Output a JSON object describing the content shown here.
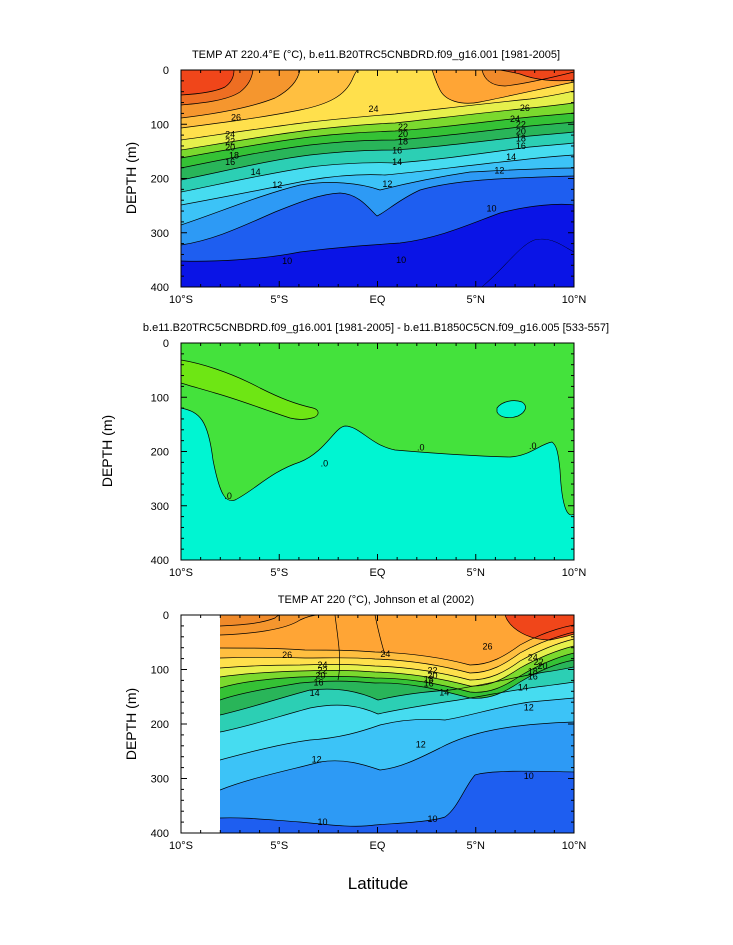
{
  "chart_data": [
    {
      "type": "contour",
      "title": "TEMP AT 220.4°E (°C), b.e11.B20TRC5CNBDRD.f09_g16.001 [1981-2005]",
      "xlabel": "",
      "ylabel": "DEPTH (m)",
      "xlim": [
        -10,
        10
      ],
      "ylim": [
        0,
        400
      ],
      "y_reversed": true,
      "xticks": [
        -10,
        -5,
        0,
        5,
        10
      ],
      "xtick_labels": [
        "10°S",
        "5°S",
        "EQ",
        "5°N",
        "10°N"
      ],
      "yticks": [
        0,
        100,
        200,
        300,
        400
      ],
      "ytick_labels": [
        "0",
        "100",
        "200",
        "300",
        "400"
      ],
      "fill_colors": [
        "#0a14e6",
        "#1e5ef0",
        "#2d9af5",
        "#3cc3f7",
        "#46dcf0",
        "#2ccfb4",
        "#29b559",
        "#35c235",
        "#7bd92e",
        "#e6f04c",
        "#ffe04c",
        "#ffbf40",
        "#ffa535",
        "#f5962e",
        "#f08a2a",
        "#ee6e22",
        "#f0461a"
      ],
      "contour_labels": [
        {
          "text": "26",
          "x": -7.2,
          "y": 88
        },
        {
          "text": "24",
          "x": -7.5,
          "y": 119
        },
        {
          "text": "22",
          "x": -7.5,
          "y": 132
        },
        {
          "text": "20",
          "x": -7.5,
          "y": 143
        },
        {
          "text": "18",
          "x": -7.3,
          "y": 158
        },
        {
          "text": "16",
          "x": -7.5,
          "y": 170
        },
        {
          "text": "14",
          "x": -6.2,
          "y": 188
        },
        {
          "text": "12",
          "x": -5.1,
          "y": 212
        },
        {
          "text": "10",
          "x": -4.6,
          "y": 352
        },
        {
          "text": "24",
          "x": -0.2,
          "y": 72
        },
        {
          "text": "22",
          "x": 1.3,
          "y": 105
        },
        {
          "text": "20",
          "x": 1.3,
          "y": 118
        },
        {
          "text": "18",
          "x": 1.3,
          "y": 132
        },
        {
          "text": "16",
          "x": 1.0,
          "y": 148
        },
        {
          "text": "14",
          "x": 1.0,
          "y": 170
        },
        {
          "text": "12",
          "x": 0.5,
          "y": 210
        },
        {
          "text": "10",
          "x": 1.2,
          "y": 350
        },
        {
          "text": "26",
          "x": 7.5,
          "y": 70
        },
        {
          "text": "24",
          "x": 7.0,
          "y": 90
        },
        {
          "text": "22",
          "x": 7.3,
          "y": 100
        },
        {
          "text": "20",
          "x": 7.3,
          "y": 113
        },
        {
          "text": "18",
          "x": 7.3,
          "y": 126
        },
        {
          "text": "16",
          "x": 7.3,
          "y": 140
        },
        {
          "text": "14",
          "x": 6.8,
          "y": 160
        },
        {
          "text": "12",
          "x": 6.2,
          "y": 185
        },
        {
          "text": "10",
          "x": 5.8,
          "y": 255
        }
      ]
    },
    {
      "type": "contour",
      "title": "b.e11.B20TRC5CNBDRD.f09_g16.001 [1981-2005] - b.e11.B1850C5CN.f09_g16.005 [533-557]",
      "xlabel": "",
      "ylabel": "DEPTH (m)",
      "xlim": [
        -10,
        10
      ],
      "ylim": [
        0,
        400
      ],
      "y_reversed": true,
      "xticks": [
        -10,
        -5,
        0,
        5,
        10
      ],
      "xtick_labels": [
        "10°S",
        "5°S",
        "EQ",
        "5°N",
        "10°N"
      ],
      "yticks": [
        0,
        100,
        200,
        300,
        400
      ],
      "ytick_labels": [
        "0",
        "100",
        "200",
        "300",
        "400"
      ],
      "fill_colors": [
        "#00f5d2",
        "#44e23c",
        "#6ee614"
      ],
      "contour_labels": [
        {
          "text": ".0",
          "x": -2.7,
          "y": 222
        },
        {
          "text": ".0",
          "x": -7.6,
          "y": 282
        },
        {
          "text": ".0",
          "x": 2.2,
          "y": 193
        },
        {
          "text": ".0",
          "x": 7.9,
          "y": 190
        }
      ]
    },
    {
      "type": "contour",
      "title": "TEMP AT 220 (°C), Johnson et al (2002)",
      "xlabel": "Latitude",
      "ylabel": "DEPTH (m)",
      "xlim": [
        -10,
        10
      ],
      "ylim": [
        0,
        400
      ],
      "y_reversed": true,
      "data_x_range": [
        -8,
        10
      ],
      "xticks": [
        -10,
        -5,
        0,
        5,
        10
      ],
      "xtick_labels": [
        "10°S",
        "5°S",
        "EQ",
        "5°N",
        "10°N"
      ],
      "yticks": [
        0,
        100,
        200,
        300,
        400
      ],
      "ytick_labels": [
        "0",
        "100",
        "200",
        "300",
        "400"
      ],
      "fill_colors": [
        "#1e5ef0",
        "#2d9af5",
        "#3cc3f7",
        "#46dcf0",
        "#2ccfb4",
        "#29b559",
        "#35c235",
        "#7bd92e",
        "#e6f04c",
        "#ffe04c",
        "#ffbf40",
        "#ffa535",
        "#f5962e",
        "#f08a2a",
        "#f0461a"
      ],
      "contour_labels": [
        {
          "text": "26",
          "x": -4.6,
          "y": 73
        },
        {
          "text": "24",
          "x": -2.8,
          "y": 92
        },
        {
          "text": "22",
          "x": -2.8,
          "y": 102
        },
        {
          "text": "20",
          "x": -2.9,
          "y": 111
        },
        {
          "text": "16",
          "x": -3.0,
          "y": 124
        },
        {
          "text": "14",
          "x": -3.2,
          "y": 143
        },
        {
          "text": "12",
          "x": -3.1,
          "y": 265
        },
        {
          "text": "10",
          "x": -2.8,
          "y": 380
        },
        {
          "text": "24",
          "x": 0.4,
          "y": 72
        },
        {
          "text": "22",
          "x": 2.8,
          "y": 102
        },
        {
          "text": "20",
          "x": 2.8,
          "y": 111
        },
        {
          "text": "18",
          "x": 2.6,
          "y": 118
        },
        {
          "text": "16",
          "x": 2.6,
          "y": 126
        },
        {
          "text": "14",
          "x": 3.4,
          "y": 142
        },
        {
          "text": "12",
          "x": 2.2,
          "y": 238
        },
        {
          "text": "10",
          "x": 2.8,
          "y": 374
        },
        {
          "text": "26",
          "x": 5.6,
          "y": 58
        },
        {
          "text": "24",
          "x": 7.9,
          "y": 78
        },
        {
          "text": "22",
          "x": 8.2,
          "y": 86
        },
        {
          "text": "20",
          "x": 8.4,
          "y": 94
        },
        {
          "text": "18",
          "x": 7.9,
          "y": 104
        },
        {
          "text": "16",
          "x": 7.9,
          "y": 113
        },
        {
          "text": "14",
          "x": 7.4,
          "y": 133
        },
        {
          "text": "12",
          "x": 7.7,
          "y": 170
        },
        {
          "text": "10",
          "x": 7.7,
          "y": 295
        }
      ]
    }
  ]
}
